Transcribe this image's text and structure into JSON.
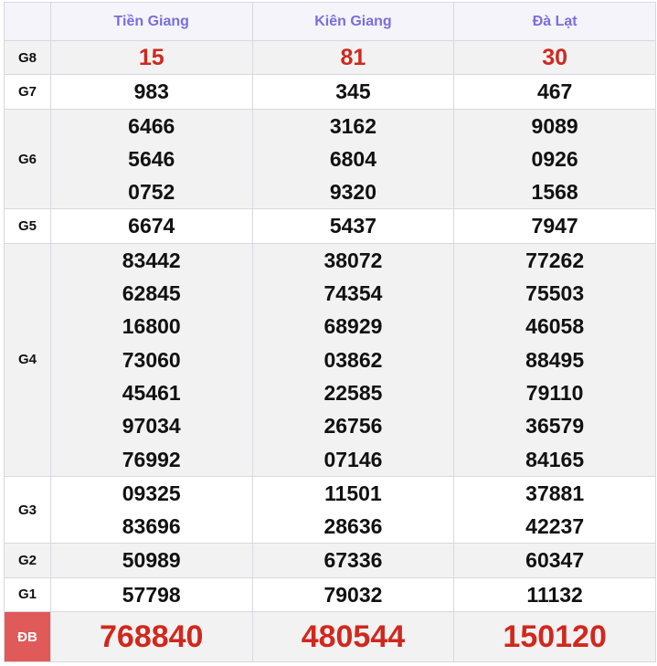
{
  "headers": [
    "Tiền Giang",
    "Kiên Giang",
    "Đà Lạt"
  ],
  "rows": [
    {
      "label": "G8",
      "values": [
        [
          "15"
        ],
        [
          "81"
        ],
        [
          "30"
        ]
      ]
    },
    {
      "label": "G7",
      "values": [
        [
          "983"
        ],
        [
          "345"
        ],
        [
          "467"
        ]
      ]
    },
    {
      "label": "G6",
      "values": [
        [
          "6466",
          "5646",
          "0752"
        ],
        [
          "3162",
          "6804",
          "9320"
        ],
        [
          "9089",
          "0926",
          "1568"
        ]
      ]
    },
    {
      "label": "G5",
      "values": [
        [
          "6674"
        ],
        [
          "5437"
        ],
        [
          "7947"
        ]
      ]
    },
    {
      "label": "G4",
      "values": [
        [
          "83442",
          "62845",
          "16800",
          "73060",
          "45461",
          "97034",
          "76992"
        ],
        [
          "38072",
          "74354",
          "68929",
          "03862",
          "22585",
          "26756",
          "07146"
        ],
        [
          "77262",
          "75503",
          "46058",
          "88495",
          "79110",
          "36579",
          "84165"
        ]
      ]
    },
    {
      "label": "G3",
      "values": [
        [
          "09325",
          "83696"
        ],
        [
          "11501",
          "28636"
        ],
        [
          "37881",
          "42237"
        ]
      ]
    },
    {
      "label": "G2",
      "values": [
        [
          "50989"
        ],
        [
          "67336"
        ],
        [
          "60347"
        ]
      ]
    },
    {
      "label": "G1",
      "values": [
        [
          "57798"
        ],
        [
          "79032"
        ],
        [
          "11132"
        ]
      ]
    },
    {
      "label": "ĐB",
      "values": [
        [
          "768840"
        ],
        [
          "480544"
        ],
        [
          "150120"
        ]
      ]
    }
  ],
  "colors": {
    "header_text": "#7a6ee0",
    "prize_red": "#d0281e",
    "db_label_bg": "#e05a5a"
  }
}
